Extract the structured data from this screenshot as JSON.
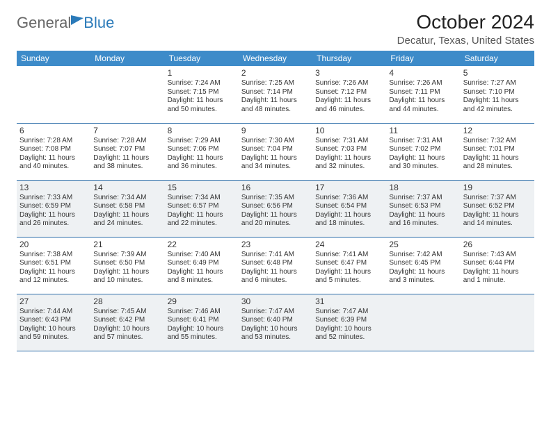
{
  "brand": {
    "part1": "General",
    "part2": "Blue"
  },
  "title": "October 2024",
  "location": "Decatur, Texas, United States",
  "headers": [
    "Sunday",
    "Monday",
    "Tuesday",
    "Wednesday",
    "Thursday",
    "Friday",
    "Saturday"
  ],
  "colors": {
    "header_bg": "#3d8bc9",
    "rule": "#2a6ca8",
    "shade": "#eef1f3",
    "brand_blue": "#2a7ab9"
  },
  "weeks": [
    {
      "shade": false,
      "days": [
        null,
        null,
        {
          "n": "1",
          "sr": "Sunrise: 7:24 AM",
          "ss": "Sunset: 7:15 PM",
          "d1": "Daylight: 11 hours",
          "d2": "and 50 minutes."
        },
        {
          "n": "2",
          "sr": "Sunrise: 7:25 AM",
          "ss": "Sunset: 7:14 PM",
          "d1": "Daylight: 11 hours",
          "d2": "and 48 minutes."
        },
        {
          "n": "3",
          "sr": "Sunrise: 7:26 AM",
          "ss": "Sunset: 7:12 PM",
          "d1": "Daylight: 11 hours",
          "d2": "and 46 minutes."
        },
        {
          "n": "4",
          "sr": "Sunrise: 7:26 AM",
          "ss": "Sunset: 7:11 PM",
          "d1": "Daylight: 11 hours",
          "d2": "and 44 minutes."
        },
        {
          "n": "5",
          "sr": "Sunrise: 7:27 AM",
          "ss": "Sunset: 7:10 PM",
          "d1": "Daylight: 11 hours",
          "d2": "and 42 minutes."
        }
      ]
    },
    {
      "shade": false,
      "days": [
        {
          "n": "6",
          "sr": "Sunrise: 7:28 AM",
          "ss": "Sunset: 7:08 PM",
          "d1": "Daylight: 11 hours",
          "d2": "and 40 minutes."
        },
        {
          "n": "7",
          "sr": "Sunrise: 7:28 AM",
          "ss": "Sunset: 7:07 PM",
          "d1": "Daylight: 11 hours",
          "d2": "and 38 minutes."
        },
        {
          "n": "8",
          "sr": "Sunrise: 7:29 AM",
          "ss": "Sunset: 7:06 PM",
          "d1": "Daylight: 11 hours",
          "d2": "and 36 minutes."
        },
        {
          "n": "9",
          "sr": "Sunrise: 7:30 AM",
          "ss": "Sunset: 7:04 PM",
          "d1": "Daylight: 11 hours",
          "d2": "and 34 minutes."
        },
        {
          "n": "10",
          "sr": "Sunrise: 7:31 AM",
          "ss": "Sunset: 7:03 PM",
          "d1": "Daylight: 11 hours",
          "d2": "and 32 minutes."
        },
        {
          "n": "11",
          "sr": "Sunrise: 7:31 AM",
          "ss": "Sunset: 7:02 PM",
          "d1": "Daylight: 11 hours",
          "d2": "and 30 minutes."
        },
        {
          "n": "12",
          "sr": "Sunrise: 7:32 AM",
          "ss": "Sunset: 7:01 PM",
          "d1": "Daylight: 11 hours",
          "d2": "and 28 minutes."
        }
      ]
    },
    {
      "shade": true,
      "days": [
        {
          "n": "13",
          "sr": "Sunrise: 7:33 AM",
          "ss": "Sunset: 6:59 PM",
          "d1": "Daylight: 11 hours",
          "d2": "and 26 minutes."
        },
        {
          "n": "14",
          "sr": "Sunrise: 7:34 AM",
          "ss": "Sunset: 6:58 PM",
          "d1": "Daylight: 11 hours",
          "d2": "and 24 minutes."
        },
        {
          "n": "15",
          "sr": "Sunrise: 7:34 AM",
          "ss": "Sunset: 6:57 PM",
          "d1": "Daylight: 11 hours",
          "d2": "and 22 minutes."
        },
        {
          "n": "16",
          "sr": "Sunrise: 7:35 AM",
          "ss": "Sunset: 6:56 PM",
          "d1": "Daylight: 11 hours",
          "d2": "and 20 minutes."
        },
        {
          "n": "17",
          "sr": "Sunrise: 7:36 AM",
          "ss": "Sunset: 6:54 PM",
          "d1": "Daylight: 11 hours",
          "d2": "and 18 minutes."
        },
        {
          "n": "18",
          "sr": "Sunrise: 7:37 AM",
          "ss": "Sunset: 6:53 PM",
          "d1": "Daylight: 11 hours",
          "d2": "and 16 minutes."
        },
        {
          "n": "19",
          "sr": "Sunrise: 7:37 AM",
          "ss": "Sunset: 6:52 PM",
          "d1": "Daylight: 11 hours",
          "d2": "and 14 minutes."
        }
      ]
    },
    {
      "shade": false,
      "days": [
        {
          "n": "20",
          "sr": "Sunrise: 7:38 AM",
          "ss": "Sunset: 6:51 PM",
          "d1": "Daylight: 11 hours",
          "d2": "and 12 minutes."
        },
        {
          "n": "21",
          "sr": "Sunrise: 7:39 AM",
          "ss": "Sunset: 6:50 PM",
          "d1": "Daylight: 11 hours",
          "d2": "and 10 minutes."
        },
        {
          "n": "22",
          "sr": "Sunrise: 7:40 AM",
          "ss": "Sunset: 6:49 PM",
          "d1": "Daylight: 11 hours",
          "d2": "and 8 minutes."
        },
        {
          "n": "23",
          "sr": "Sunrise: 7:41 AM",
          "ss": "Sunset: 6:48 PM",
          "d1": "Daylight: 11 hours",
          "d2": "and 6 minutes."
        },
        {
          "n": "24",
          "sr": "Sunrise: 7:41 AM",
          "ss": "Sunset: 6:47 PM",
          "d1": "Daylight: 11 hours",
          "d2": "and 5 minutes."
        },
        {
          "n": "25",
          "sr": "Sunrise: 7:42 AM",
          "ss": "Sunset: 6:45 PM",
          "d1": "Daylight: 11 hours",
          "d2": "and 3 minutes."
        },
        {
          "n": "26",
          "sr": "Sunrise: 7:43 AM",
          "ss": "Sunset: 6:44 PM",
          "d1": "Daylight: 11 hours",
          "d2": "and 1 minute."
        }
      ]
    },
    {
      "shade": true,
      "days": [
        {
          "n": "27",
          "sr": "Sunrise: 7:44 AM",
          "ss": "Sunset: 6:43 PM",
          "d1": "Daylight: 10 hours",
          "d2": "and 59 minutes."
        },
        {
          "n": "28",
          "sr": "Sunrise: 7:45 AM",
          "ss": "Sunset: 6:42 PM",
          "d1": "Daylight: 10 hours",
          "d2": "and 57 minutes."
        },
        {
          "n": "29",
          "sr": "Sunrise: 7:46 AM",
          "ss": "Sunset: 6:41 PM",
          "d1": "Daylight: 10 hours",
          "d2": "and 55 minutes."
        },
        {
          "n": "30",
          "sr": "Sunrise: 7:47 AM",
          "ss": "Sunset: 6:40 PM",
          "d1": "Daylight: 10 hours",
          "d2": "and 53 minutes."
        },
        {
          "n": "31",
          "sr": "Sunrise: 7:47 AM",
          "ss": "Sunset: 6:39 PM",
          "d1": "Daylight: 10 hours",
          "d2": "and 52 minutes."
        },
        null,
        null
      ]
    }
  ]
}
